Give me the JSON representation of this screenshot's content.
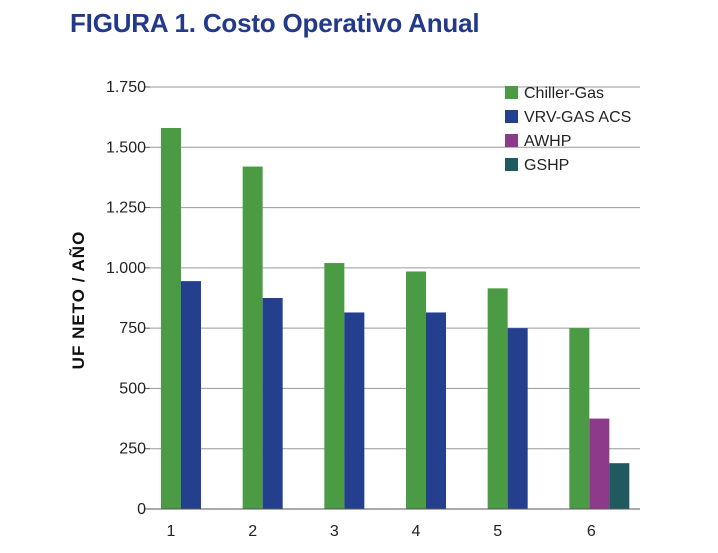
{
  "title": "FIGURA 1. Costo Operativo Anual",
  "chart_data": {
    "type": "bar",
    "title": "FIGURA 1. Costo Operativo Anual",
    "xlabel": "",
    "ylabel": "UF NETO / AÑO",
    "ylim": [
      0,
      1750
    ],
    "yticks": [
      0,
      250,
      500,
      750,
      1000,
      1250,
      1500,
      1750
    ],
    "ytick_labels": [
      "0",
      "250",
      "500",
      "750",
      "1.000",
      "1.250",
      "1.500",
      "1.750"
    ],
    "categories": [
      "1",
      "2",
      "3",
      "4",
      "5",
      "6"
    ],
    "grid": true,
    "legend_position": "top-right",
    "series": [
      {
        "name": "Chiller-Gas",
        "color": "#4b9b45",
        "values": [
          1580,
          1420,
          1020,
          985,
          915,
          750
        ]
      },
      {
        "name": "VRV-GAS ACS",
        "color": "#233f8e",
        "values": [
          945,
          875,
          815,
          815,
          750,
          null
        ]
      },
      {
        "name": "AWHP",
        "color": "#8e3a8a",
        "values": [
          null,
          null,
          null,
          null,
          null,
          375
        ]
      },
      {
        "name": "GSHP",
        "color": "#1f5a5e",
        "values": [
          null,
          null,
          null,
          null,
          null,
          190
        ]
      }
    ]
  }
}
